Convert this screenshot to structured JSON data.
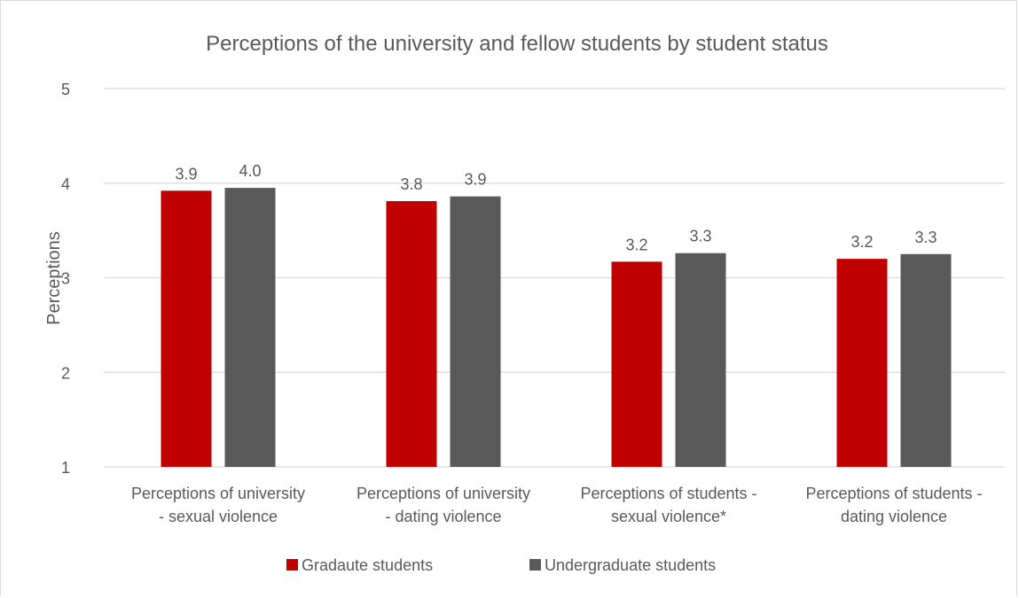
{
  "chart_data": {
    "type": "bar",
    "title": "Perceptions of the university and fellow students by student status",
    "ylabel": "Perceptions",
    "xlabel": "",
    "ylim": [
      1,
      5
    ],
    "yticks": [
      "1",
      "2",
      "3",
      "4",
      "5"
    ],
    "grid": true,
    "legend_position": "bottom",
    "categories": [
      [
        "Perceptions of university",
        "- sexual violence"
      ],
      [
        "Perceptions of university",
        "- dating violence"
      ],
      [
        "Perceptions of students -",
        "sexual violence*"
      ],
      [
        "Perceptions of students -",
        "dating violence"
      ]
    ],
    "series": [
      {
        "name": "Gradaute students",
        "color": "#c00000",
        "values": [
          3.92,
          3.81,
          3.17,
          3.2
        ],
        "labels": [
          "3.9",
          "3.8",
          "3.2",
          "3.2"
        ]
      },
      {
        "name": "Undergraduate students",
        "color": "#595959",
        "values": [
          3.95,
          3.86,
          3.26,
          3.25
        ],
        "labels": [
          "4.0",
          "3.9",
          "3.3",
          "3.3"
        ]
      }
    ]
  }
}
